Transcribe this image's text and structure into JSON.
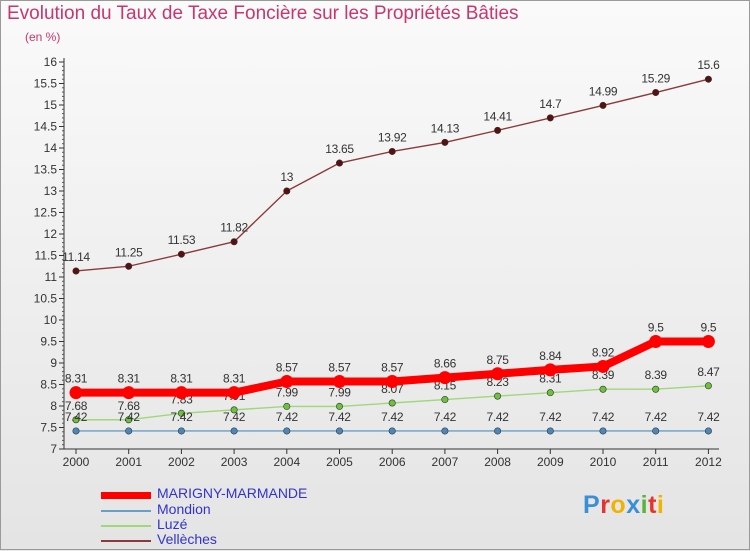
{
  "chart_data": {
    "type": "line",
    "title": "Evolution du Taux de Taxe Foncière sur les Propriétés Bâties",
    "ylabel": "(en %)",
    "xlabel": "",
    "categories": [
      "2000",
      "2001",
      "2002",
      "2003",
      "2004",
      "2005",
      "2006",
      "2007",
      "2008",
      "2009",
      "2010",
      "2011",
      "2012"
    ],
    "yticks": [
      "7",
      "7.5",
      "8",
      "8.5",
      "9",
      "9.5",
      "10",
      "10.5",
      "11",
      "11.5",
      "12",
      "12.5",
      "13",
      "13.5",
      "14",
      "14.5",
      "15",
      "15.5",
      "16"
    ],
    "ylim": [
      7,
      16
    ],
    "grid": false,
    "legend_position": "bottom-left",
    "series": [
      {
        "name": "Vellèches",
        "color": "#8b3a3a",
        "marker": "#5a1010",
        "values": [
          11.14,
          11.25,
          11.53,
          11.82,
          13,
          13.65,
          13.92,
          14.13,
          14.41,
          14.7,
          14.99,
          15.29,
          15.6
        ],
        "labels": [
          "11.14",
          "11.25",
          "11.53",
          "11.82",
          "13",
          "13.65",
          "13.92",
          "14.13",
          "14.41",
          "14.7",
          "14.99",
          "15.29",
          "15.6"
        ]
      },
      {
        "name": "Luzé",
        "color": "#9fd87a",
        "marker": "#6cc23a",
        "values": [
          7.68,
          7.68,
          7.83,
          7.91,
          7.99,
          7.99,
          8.07,
          8.15,
          8.23,
          8.31,
          8.39,
          8.39,
          8.47
        ],
        "labels": [
          "7.68",
          "7.68",
          "7.83",
          "7.91",
          "7.99",
          "7.99",
          "8.07",
          "8.15",
          "8.23",
          "8.31",
          "8.39",
          "8.39",
          "8.47"
        ]
      },
      {
        "name": "Mondion",
        "color": "#6a9ec6",
        "marker": "#4a88bb",
        "values": [
          7.42,
          7.42,
          7.42,
          7.42,
          7.42,
          7.42,
          7.42,
          7.42,
          7.42,
          7.42,
          7.42,
          7.42,
          7.42
        ],
        "labels": [
          "7.42",
          "7.42",
          "7.42",
          "7.42",
          "7.42",
          "7.42",
          "7.42",
          "7.42",
          "7.42",
          "7.42",
          "7.42",
          "7.42",
          "7.42"
        ]
      },
      {
        "name": "MARIGNY-MARMANDE",
        "color": "#ff0000",
        "marker": "#ff0000",
        "values": [
          8.31,
          8.31,
          8.31,
          8.31,
          8.57,
          8.57,
          8.57,
          8.66,
          8.75,
          8.84,
          8.92,
          9.5,
          9.5
        ],
        "labels": [
          "8.31",
          "8.31",
          "8.31",
          "8.31",
          "8.57",
          "8.57",
          "8.57",
          "8.66",
          "8.75",
          "8.84",
          "8.92",
          "9.5",
          "9.5"
        ]
      }
    ]
  },
  "legend": {
    "items": [
      {
        "name": "MARIGNY-MARMANDE",
        "color": "#ff0000",
        "text_color": "#3333cc"
      },
      {
        "name": "Mondion",
        "color": "#6a9ec6",
        "text_color": "#3333cc"
      },
      {
        "name": "Luzé",
        "color": "#9fd87a",
        "text_color": "#3333cc"
      },
      {
        "name": "Vellèches",
        "color": "#8b3a3a",
        "text_color": "#3333cc"
      }
    ]
  },
  "branding": {
    "logo_text": "Proxiti"
  }
}
